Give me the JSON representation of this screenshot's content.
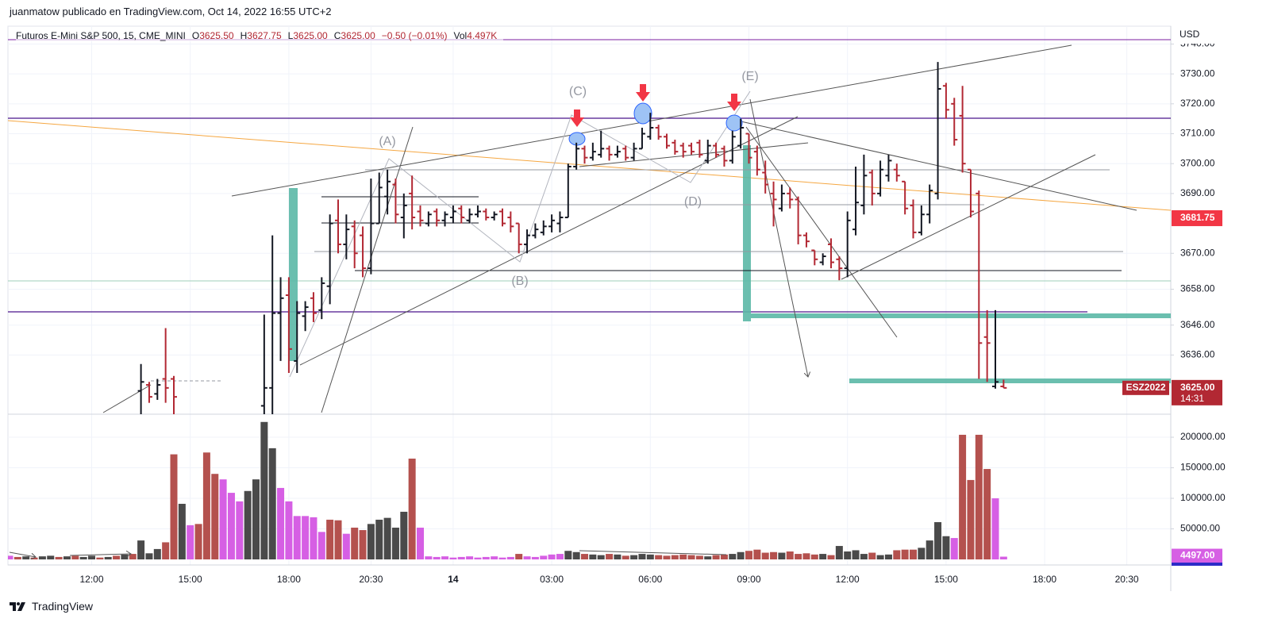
{
  "byline": "juanmatow publicado en TradingView.com, Oct 14, 2022 16:55 UTC+2",
  "footer": "TradingView",
  "chart_data": {
    "type": "ohlc",
    "symbol": "Futuros E-Mini S&P 500, 15, CME_MINI",
    "legend_items": [
      {
        "k": "O",
        "v": "3625.50"
      },
      {
        "k": "H",
        "v": "3627.75"
      },
      {
        "k": "L",
        "v": "3625.00"
      },
      {
        "k": "C",
        "v": "3625.00"
      },
      {
        "k": "",
        "v": "−0.50 (−0.01%)"
      },
      {
        "k": "Vol",
        "v": "4.497K"
      }
    ],
    "currency": "USD",
    "annotations": [
      "(A)",
      "(B)",
      "(C)",
      "(D)",
      "(E)"
    ],
    "up_color": "#131722",
    "down_color": "#b22833",
    "grid": true,
    "categories": [
      null,
      null,
      null,
      null,
      null,
      null,
      null,
      null,
      null,
      null,
      "12:00",
      null,
      null,
      null,
      null,
      null,
      null,
      null,
      null,
      null,
      null,
      null,
      "15:00",
      null,
      null,
      null,
      null,
      null,
      null,
      null,
      null,
      null,
      null,
      null,
      "18:00",
      null,
      null,
      null,
      null,
      null,
      null,
      null,
      null,
      null,
      "20:30",
      null,
      null,
      null,
      null,
      null,
      null,
      null,
      null,
      null,
      "14",
      null,
      null,
      null,
      null,
      null,
      null,
      null,
      null,
      null,
      null,
      null,
      "03:00",
      null,
      null,
      null,
      null,
      null,
      null,
      null,
      null,
      null,
      null,
      null,
      "06:00",
      null,
      null,
      null,
      null,
      null,
      null,
      null,
      null,
      null,
      null,
      null,
      "09:00",
      null,
      null,
      null,
      null,
      null,
      null,
      null,
      null,
      null,
      null,
      null,
      "12:00",
      null,
      null,
      null,
      null,
      null,
      null,
      null,
      null,
      null,
      null,
      null,
      "15:00",
      null,
      null,
      null,
      null,
      null,
      null,
      null,
      null,
      null,
      null,
      null,
      "18:00",
      null,
      null,
      null,
      null,
      null,
      null,
      null,
      null,
      null,
      "20:30"
    ],
    "ohlc": [
      null,
      null,
      null,
      null,
      null,
      null,
      null,
      null,
      null,
      null,
      null,
      null,
      null,
      null,
      null,
      null,
      [
        3624,
        3633,
        3616,
        3627
      ],
      [
        3626,
        3627,
        3620,
        3622
      ],
      [
        3623,
        3628,
        3621,
        3626
      ],
      [
        3628,
        3645,
        3620,
        3625
      ],
      [
        3628,
        3629,
        3612,
        3622
      ],
      null,
      null,
      null,
      null,
      null,
      null,
      null,
      null,
      null,
      null,
      [
        3619,
        3649.5,
        3612,
        3625
      ],
      [
        3625,
        3676,
        3613,
        3650
      ],
      [
        3650,
        3662,
        3634,
        3655
      ],
      [
        3656,
        3662,
        3630,
        3638
      ],
      [
        3634,
        3654,
        3630,
        3650
      ],
      [
        3649,
        3654,
        3644,
        3652
      ],
      [
        3655,
        3657,
        3647,
        3650
      ],
      [
        3651,
        3662,
        3648,
        3660
      ],
      [
        3659,
        3683,
        3653,
        3680
      ],
      [
        3681,
        3688,
        3670,
        3673
      ],
      [
        3673,
        3683,
        3668,
        3678
      ],
      [
        3679,
        3681,
        3665,
        3670
      ],
      [
        3676,
        3679,
        3662,
        3665
      ],
      [
        3665,
        3695,
        3663,
        3680
      ],
      [
        3680,
        3697,
        3680,
        3692
      ],
      [
        3689,
        3698,
        3683,
        3694
      ],
      [
        3693,
        3695,
        3680,
        3683
      ],
      [
        3682,
        3690,
        3675,
        3686
      ],
      [
        3690,
        3696,
        3678,
        3682
      ],
      [
        3684,
        3686,
        3679,
        3681
      ],
      [
        3680,
        3684,
        3679,
        3683
      ],
      [
        3684,
        3685,
        3679,
        3681
      ],
      [
        3681,
        3684,
        3679,
        3683
      ],
      [
        3682,
        3686,
        3680,
        3684
      ],
      [
        3685,
        3686,
        3680,
        3682
      ],
      [
        3681,
        3685,
        3680,
        3683
      ],
      [
        3683,
        3686,
        3682,
        3684
      ],
      [
        3684,
        3685,
        3681,
        3682
      ],
      [
        3682,
        3684,
        3681,
        3683
      ],
      [
        3684,
        3685,
        3679,
        3680
      ],
      [
        3682,
        3684,
        3677,
        3679
      ],
      [
        3680,
        3680,
        3670,
        3673
      ],
      [
        3673,
        3678,
        3670,
        3676
      ],
      [
        3676,
        3680,
        3675,
        3678
      ],
      [
        3677,
        3681,
        3676,
        3679
      ],
      [
        3679,
        3683,
        3677,
        3681
      ],
      [
        3680,
        3684,
        3677,
        3682
      ],
      [
        3682,
        3700,
        3682,
        3699
      ],
      [
        3699,
        3707,
        3698,
        3705
      ],
      [
        3705,
        3706,
        3700,
        3702
      ],
      [
        3702,
        3707,
        3701,
        3704
      ],
      [
        3703,
        3711,
        3702,
        3705
      ],
      [
        3705,
        3706,
        3701,
        3703
      ],
      [
        3703,
        3706,
        3702,
        3704
      ],
      [
        3705,
        3706,
        3701,
        3702
      ],
      [
        3702,
        3707,
        3701,
        3705
      ],
      [
        3705,
        3712,
        3705,
        3710
      ],
      [
        3709,
        3717,
        3708,
        3712
      ],
      [
        3712,
        3713,
        3708,
        3709
      ],
      [
        3709,
        3710,
        3705,
        3706
      ],
      [
        3707,
        3708,
        3703,
        3704
      ],
      [
        3706,
        3707,
        3702,
        3704
      ],
      [
        3706,
        3707,
        3703,
        3704
      ],
      [
        3707,
        3708,
        3702,
        3703
      ],
      [
        3701,
        3708,
        3700,
        3706
      ],
      [
        3706,
        3707,
        3702,
        3703
      ],
      [
        3705,
        3706,
        3699,
        3701
      ],
      [
        3701,
        3711,
        3700,
        3709
      ],
      [
        3706,
        3715,
        3705,
        3712
      ],
      [
        3710,
        3710,
        3700,
        3702
      ],
      [
        3704,
        3706,
        3696,
        3698
      ],
      [
        3697,
        3701,
        3690,
        3693
      ],
      [
        3690,
        3694,
        3679,
        3688
      ],
      [
        3685,
        3693,
        3684,
        3690
      ],
      [
        3690,
        3692,
        3685,
        3688
      ],
      [
        3688,
        3689,
        3673,
        3676
      ],
      [
        3676,
        3677,
        3672,
        3674
      ],
      [
        3671,
        3671,
        3666,
        3668
      ],
      [
        3667,
        3670,
        3666,
        3669
      ],
      [
        3673,
        3675,
        3665,
        3667
      ],
      [
        3668,
        3669,
        3661,
        3665
      ],
      [
        3665,
        3684,
        3662,
        3681
      ],
      [
        3678,
        3699,
        3676,
        3687
      ],
      [
        3686,
        3703,
        3683,
        3696
      ],
      [
        3697,
        3698,
        3686,
        3690
      ],
      [
        3690,
        3701,
        3689,
        3698
      ],
      [
        3696,
        3703,
        3694,
        3701
      ],
      [
        3698,
        3700,
        3694,
        3696
      ],
      [
        3694,
        3694,
        3683,
        3685
      ],
      [
        3686,
        3688,
        3675,
        3677
      ],
      [
        3677,
        3686,
        3676,
        3683
      ],
      [
        3683,
        3693,
        3680,
        3691
      ],
      [
        3690,
        3734,
        3688,
        3725
      ],
      [
        3726,
        3727,
        3715,
        3718
      ],
      [
        3720,
        3722,
        3706,
        3708
      ],
      [
        3716,
        3726,
        3697,
        3700
      ],
      [
        3698,
        3698,
        3682,
        3684
      ],
      [
        3690,
        3691,
        3628,
        3640
      ],
      [
        3642,
        3651,
        3627,
        3640
      ],
      [
        3625.5,
        3651,
        3624.75,
        3627
      ],
      [
        3625.5,
        3627.75,
        3625,
        3625
      ],
      null,
      null,
      null,
      null,
      null,
      null,
      null,
      null,
      null,
      null,
      null,
      null,
      null,
      null,
      null
    ],
    "ylim": [
      3616.2,
      3744.1
    ],
    "yticks": [
      {
        "value": 3740,
        "label": "3740.00"
      },
      {
        "value": 3730,
        "label": "3730.00"
      },
      {
        "value": 3720,
        "label": "3720.00"
      },
      {
        "value": 3710,
        "label": "3710.00"
      },
      {
        "value": 3700,
        "label": "3700.00"
      },
      {
        "value": 3690,
        "label": "3690.00"
      },
      {
        "value": 3670,
        "label": "3670.00"
      },
      {
        "value": 3658,
        "label": "3658.00"
      },
      {
        "value": 3646,
        "label": "3646.00"
      },
      {
        "value": 3636,
        "label": "3636.00"
      }
    ],
    "price_labels": [
      {
        "value": 3681.75,
        "label": "3681.75",
        "color": "#f23645"
      },
      {
        "value": 3625,
        "label": "3625.00",
        "sublabel": "14:31",
        "tag": "ESZ2022",
        "color": "#b22833"
      }
    ],
    "volume": {
      "values": [
        6000,
        4000,
        5000,
        3000,
        5000,
        6000,
        4000,
        5000,
        6000,
        4000,
        6000,
        3000,
        4000,
        6000,
        8000,
        9000,
        31000,
        10000,
        17000,
        28000,
        172000,
        91000,
        56000,
        58000,
        175000,
        140000,
        131000,
        109000,
        95000,
        112000,
        131000,
        225000,
        182000,
        117000,
        95000,
        71000,
        71000,
        69000,
        45000,
        65000,
        64000,
        42000,
        52000,
        48000,
        58000,
        65000,
        68000,
        52000,
        78000,
        165000,
        52000,
        5000,
        4000,
        5000,
        3000,
        4000,
        5000,
        3000,
        4000,
        5000,
        3000,
        4000,
        9000,
        5000,
        4000,
        6000,
        8000,
        9000,
        14000,
        12000,
        9000,
        8000,
        7000,
        9000,
        8000,
        6000,
        7000,
        9000,
        8000,
        7000,
        6000,
        7000,
        8000,
        7000,
        6000,
        5000,
        7000,
        8000,
        9000,
        12000,
        14000,
        16000,
        11000,
        12000,
        11000,
        13000,
        9000,
        10000,
        8000,
        9000,
        7000,
        22000,
        13000,
        15000,
        9000,
        11000,
        7000,
        8000,
        15000,
        16000,
        16000,
        19000,
        31000,
        61000,
        38000,
        35000,
        204000,
        130000,
        204000,
        148000,
        100000,
        4497,
        null,
        null,
        null,
        null,
        null,
        null,
        null,
        null,
        null,
        null,
        null,
        null,
        null,
        null,
        null
      ],
      "colors": [
        "#d65fe4",
        "#b4514e",
        "#4a4a4a",
        "#b4514e",
        "#4a4a4a",
        "#4a4a4a",
        "#b4514e",
        "#4a4a4a",
        "#b4514e",
        "#4a4a4a",
        "#4a4a4a",
        "#b4514e",
        "#4a4a4a",
        "#b4514e",
        "#4a4a4a",
        "#b4514e",
        "#4a4a4a",
        "#4a4a4a",
        "#4a4a4a",
        "#b4514e",
        "#b4514e",
        "#4a4a4a",
        "#d65fe4",
        "#b4514e",
        "#b4514e",
        "#b4514e",
        "#d65fe4",
        "#d65fe4",
        "#d65fe4",
        "#4a4a4a",
        "#4a4a4a",
        "#4a4a4a",
        "#4a4a4a",
        "#d65fe4",
        "#d65fe4",
        "#d65fe4",
        "#d65fe4",
        "#d65fe4",
        "#d65fe4",
        "#b4514e",
        "#b4514e",
        "#d65fe4",
        "#b4514e",
        "#b4514e",
        "#4a4a4a",
        "#4a4a4a",
        "#4a4a4a",
        "#4a4a4a",
        "#4a4a4a",
        "#b4514e",
        "#d65fe4",
        "#d65fe4",
        "#d65fe4",
        "#d65fe4",
        "#d65fe4",
        "#d65fe4",
        "#d65fe4",
        "#d65fe4",
        "#d65fe4",
        "#d65fe4",
        "#d65fe4",
        "#d65fe4",
        "#b4514e",
        "#d65fe4",
        "#d65fe4",
        "#d65fe4",
        "#d65fe4",
        "#d65fe4",
        "#4a4a4a",
        "#4a4a4a",
        "#b4514e",
        "#4a4a4a",
        "#4a4a4a",
        "#b4514e",
        "#4a4a4a",
        "#b4514e",
        "#4a4a4a",
        "#4a4a4a",
        "#4a4a4a",
        "#b4514e",
        "#b4514e",
        "#b4514e",
        "#b4514e",
        "#b4514e",
        "#b4514e",
        "#4a4a4a",
        "#b4514e",
        "#b4514e",
        "#4a4a4a",
        "#4a4a4a",
        "#b4514e",
        "#b4514e",
        "#b4514e",
        "#b4514e",
        "#4a4a4a",
        "#b4514e",
        "#b4514e",
        "#b4514e",
        "#b4514e",
        "#4a4a4a",
        "#b4514e",
        "#4a4a4a",
        "#4a4a4a",
        "#4a4a4a",
        "#4a4a4a",
        "#b4514e",
        "#4a4a4a",
        "#4a4a4a",
        "#b4514e",
        "#b4514e",
        "#b4514e",
        "#4a4a4a",
        "#4a4a4a",
        "#4a4a4a",
        "#4a4a4a",
        "#d65fe4",
        "#b4514e",
        "#b4514e",
        "#b4514e",
        "#b4514e",
        "#d65fe4",
        "#d65fe4"
      ],
      "last_label": {
        "value": 4497,
        "label": "4497.00",
        "color": "#d65fe4"
      }
    },
    "y2lim": [
      0,
      227300
    ],
    "y2ticks": [
      {
        "value": 50000,
        "label": "50000.00"
      },
      {
        "value": 100000,
        "label": "100000.00"
      },
      {
        "value": 150000,
        "label": "150000.00"
      },
      {
        "value": 200000,
        "label": "200000.00"
      }
    ]
  }
}
